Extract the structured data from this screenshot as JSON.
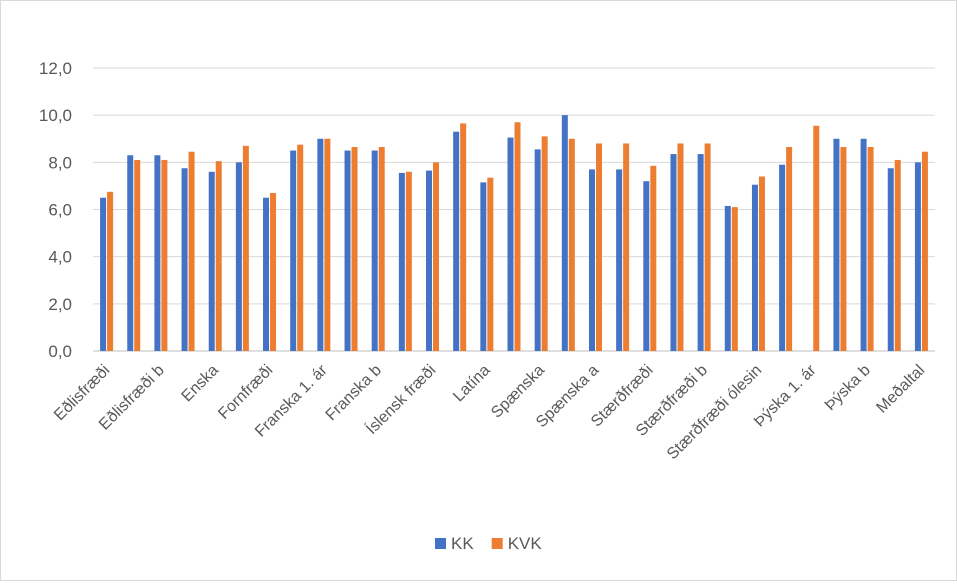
{
  "chart_data": {
    "type": "bar",
    "title": "",
    "xlabel": "",
    "ylabel": "",
    "ylim": [
      0,
      12
    ],
    "yticks": [
      "0,0",
      "2,0",
      "4,0",
      "6,0",
      "8,0",
      "10,0",
      "12,0"
    ],
    "grid": true,
    "legend_position": "bottom",
    "categories": [
      "Eðlisfræði",
      "Eðlisfræði b",
      "Enska",
      "Fornfræði",
      "Franska 1. ár",
      "Franska b",
      "Íslensk fræði",
      "Latína",
      "Spænska",
      "Spænska a",
      "Stærðfræði",
      "Stærðfræði b",
      "Stærðfræði ólesin",
      "Þýska 1. ár",
      "Þýska b",
      "Meðaltal"
    ],
    "slots": [
      {
        "label": "Eðlisfræði",
        "kk": 6.5,
        "kvk": 6.75
      },
      {
        "label": "",
        "kk": 8.3,
        "kvk": 8.1
      },
      {
        "label": "Eðlisfræði b",
        "kk": 8.3,
        "kvk": 8.1
      },
      {
        "label": "",
        "kk": 7.75,
        "kvk": 8.45
      },
      {
        "label": "Enska",
        "kk": 7.6,
        "kvk": 8.05
      },
      {
        "label": "",
        "kk": 8.0,
        "kvk": 8.7
      },
      {
        "label": "Fornfræði",
        "kk": 6.5,
        "kvk": 6.7
      },
      {
        "label": "",
        "kk": 8.5,
        "kvk": 8.75
      },
      {
        "label": "Franska 1. ár",
        "kk": 9.0,
        "kvk": 9.0
      },
      {
        "label": "",
        "kk": 8.5,
        "kvk": 8.65
      },
      {
        "label": "Franska b",
        "kk": 8.5,
        "kvk": 8.65
      },
      {
        "label": "",
        "kk": 7.55,
        "kvk": 7.6
      },
      {
        "label": "Íslensk fræði",
        "kk": 7.65,
        "kvk": 8.0
      },
      {
        "label": "",
        "kk": 9.3,
        "kvk": 9.65
      },
      {
        "label": "Latína",
        "kk": 7.15,
        "kvk": 7.35
      },
      {
        "label": "",
        "kk": 9.05,
        "kvk": 9.7
      },
      {
        "label": "Spænska",
        "kk": 8.55,
        "kvk": 9.1
      },
      {
        "label": "",
        "kk": 10.0,
        "kvk": 9.0
      },
      {
        "label": "Spænska a",
        "kk": 7.7,
        "kvk": 8.8
      },
      {
        "label": "",
        "kk": 7.7,
        "kvk": 8.8
      },
      {
        "label": "Stærðfræði",
        "kk": 7.2,
        "kvk": 7.85
      },
      {
        "label": "",
        "kk": 8.35,
        "kvk": 8.8
      },
      {
        "label": "Stærðfræði b",
        "kk": 8.35,
        "kvk": 8.8
      },
      {
        "label": "",
        "kk": 6.15,
        "kvk": 6.1
      },
      {
        "label": "Stærðfræði ólesin",
        "kk": 7.05,
        "kvk": 7.4
      },
      {
        "label": "",
        "kk": 7.9,
        "kvk": 8.65
      },
      {
        "label": "Þýska 1. ár",
        "kk": null,
        "kvk": 9.55
      },
      {
        "label": "",
        "kk": 9.0,
        "kvk": 8.65
      },
      {
        "label": "Þýska b",
        "kk": 9.0,
        "kvk": 8.65
      },
      {
        "label": "",
        "kk": 7.75,
        "kvk": 8.1
      },
      {
        "label": "Meðaltal",
        "kk": 8.0,
        "kvk": 8.45
      }
    ],
    "series": [
      {
        "name": "KK",
        "color": "#4472c4",
        "key": "kk"
      },
      {
        "name": "KVK",
        "color": "#ed7d31",
        "key": "kvk"
      }
    ]
  }
}
